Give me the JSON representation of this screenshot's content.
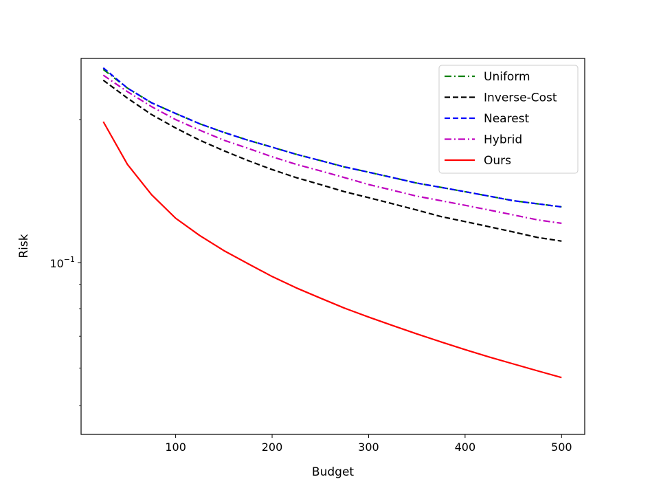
{
  "chart_data": {
    "type": "line",
    "title": "",
    "xlabel": "Budget",
    "ylabel": "Risk",
    "xlim": [
      2,
      524
    ],
    "ylim": [
      0.0435,
      0.269
    ],
    "yscale": "log",
    "xticks": [
      100,
      200,
      300,
      400,
      500
    ],
    "xtick_labels": [
      "100",
      "200",
      "300",
      "400",
      "500"
    ],
    "ytick_major": [
      {
        "value": 0.1,
        "base": "10",
        "exponent": "−1"
      }
    ],
    "ytick_minor": [
      0.05,
      0.06,
      0.07,
      0.08,
      0.09,
      0.2
    ],
    "legend_position": "upper right",
    "grid": false,
    "series": [
      {
        "name": "Uniform",
        "color": "#008000",
        "style": "dashdot",
        "x": [
          25,
          50,
          75,
          100,
          125,
          150,
          175,
          200,
          225,
          250,
          275,
          300,
          325,
          350,
          375,
          400,
          425,
          450,
          475,
          500
        ],
        "values": [
          0.255,
          0.233,
          0.217,
          0.206,
          0.196,
          0.188,
          0.181,
          0.175,
          0.169,
          0.164,
          0.159,
          0.155,
          0.151,
          0.147,
          0.144,
          0.141,
          0.138,
          0.135,
          0.133,
          0.131
        ]
      },
      {
        "name": "Inverse-Cost",
        "color": "#000000",
        "style": "dashed",
        "x": [
          25,
          50,
          75,
          100,
          125,
          150,
          175,
          200,
          225,
          250,
          275,
          300,
          325,
          350,
          375,
          400,
          425,
          450,
          475,
          500
        ],
        "values": [
          0.242,
          0.222,
          0.205,
          0.192,
          0.181,
          0.172,
          0.164,
          0.157,
          0.151,
          0.146,
          0.141,
          0.137,
          0.133,
          0.129,
          0.125,
          0.122,
          0.119,
          0.116,
          0.113,
          0.111
        ]
      },
      {
        "name": "Nearest",
        "color": "#0000ff",
        "style": "dashed",
        "x": [
          25,
          50,
          75,
          100,
          125,
          150,
          175,
          200,
          225,
          250,
          275,
          300,
          325,
          350,
          375,
          400,
          425,
          450,
          475,
          500
        ],
        "values": [
          0.257,
          0.233,
          0.217,
          0.206,
          0.196,
          0.188,
          0.181,
          0.175,
          0.169,
          0.164,
          0.159,
          0.155,
          0.151,
          0.147,
          0.144,
          0.141,
          0.138,
          0.135,
          0.133,
          0.131
        ]
      },
      {
        "name": "Hybrid",
        "color": "#bf00bf",
        "style": "dashdot",
        "x": [
          25,
          50,
          75,
          100,
          125,
          150,
          175,
          200,
          225,
          250,
          275,
          300,
          325,
          350,
          375,
          400,
          425,
          450,
          475,
          500
        ],
        "values": [
          0.248,
          0.229,
          0.213,
          0.2,
          0.19,
          0.181,
          0.174,
          0.167,
          0.161,
          0.156,
          0.151,
          0.146,
          0.142,
          0.138,
          0.135,
          0.132,
          0.129,
          0.126,
          0.123,
          0.121
        ]
      },
      {
        "name": "Ours",
        "color": "#ff0000",
        "style": "solid",
        "x": [
          25,
          50,
          75,
          100,
          125,
          150,
          175,
          200,
          225,
          250,
          275,
          300,
          325,
          350,
          375,
          400,
          425,
          450,
          475,
          500
        ],
        "values": [
          0.198,
          0.161,
          0.139,
          0.124,
          0.114,
          0.106,
          0.0995,
          0.0935,
          0.0885,
          0.0842,
          0.0802,
          0.0768,
          0.0737,
          0.0708,
          0.0681,
          0.0656,
          0.0633,
          0.0612,
          0.0592,
          0.0573
        ]
      }
    ]
  }
}
